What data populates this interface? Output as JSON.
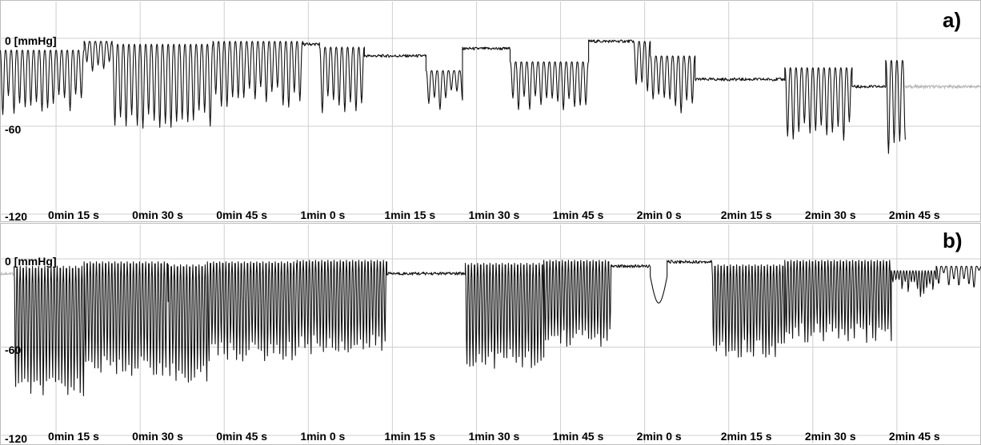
{
  "chart_data": [
    {
      "type": "line",
      "panel_label": "a)",
      "ylabel": "[mmHg]",
      "y_ticks": [
        {
          "value": 0,
          "label": "0 [mmHg]"
        },
        {
          "value": -60,
          "label": "-60"
        },
        {
          "value": -120,
          "label": "-120"
        }
      ],
      "ylim": [
        -120,
        5
      ],
      "xlim": [
        5,
        180
      ],
      "x_ticks": [
        {
          "t": 15,
          "label": "0min 15 s"
        },
        {
          "t": 30,
          "label": "0min 30 s"
        },
        {
          "t": 45,
          "label": "0min 45 s"
        },
        {
          "t": 60,
          "label": "1min 0 s"
        },
        {
          "t": 75,
          "label": "1min 15 s"
        },
        {
          "t": 90,
          "label": "1min 30 s"
        },
        {
          "t": 105,
          "label": "1min 45 s"
        },
        {
          "t": 120,
          "label": "2min 0 s"
        },
        {
          "t": 135,
          "label": "2min 15 s"
        },
        {
          "t": 150,
          "label": "2min 30 s"
        },
        {
          "t": 165,
          "label": "2min 45 s"
        }
      ],
      "grid": true,
      "series": [
        {
          "style": "dark",
          "segments": [
            {
              "t0": 5.0,
              "t1": 20.0,
              "mode": "osc",
              "upper": -8,
              "lower": -45,
              "period": 1.0
            },
            {
              "t0": 20.0,
              "t1": 25.0,
              "mode": "osc",
              "upper": -2,
              "lower": -22,
              "period": 1.0
            },
            {
              "t0": 25.0,
              "t1": 43.0,
              "mode": "osc",
              "upper": -4,
              "lower": -55,
              "period": 1.0
            },
            {
              "t0": 43.0,
              "t1": 59.0,
              "mode": "osc",
              "upper": -2,
              "lower": -40,
              "period": 1.0
            },
            {
              "t0": 59.0,
              "t1": 62.0,
              "mode": "flat",
              "level": -4
            },
            {
              "t0": 62.0,
              "t1": 70.0,
              "mode": "osc",
              "upper": -6,
              "lower": -45,
              "period": 1.0
            },
            {
              "t0": 70.0,
              "t1": 81.0,
              "mode": "flat",
              "level": -12
            },
            {
              "t0": 81.0,
              "t1": 87.5,
              "mode": "osc",
              "upper": -22,
              "lower": -42,
              "period": 1.0
            },
            {
              "t0": 87.5,
              "t1": 96.0,
              "mode": "flat",
              "level": -7
            },
            {
              "t0": 96.0,
              "t1": 110.0,
              "mode": "osc",
              "upper": -16,
              "lower": -46,
              "period": 1.0
            },
            {
              "t0": 110.0,
              "t1": 118.0,
              "mode": "flat",
              "level": -2
            },
            {
              "t0": 118.0,
              "t1": 121.0,
              "mode": "osc",
              "upper": -2,
              "lower": -35,
              "period": 1.0
            },
            {
              "t0": 121.0,
              "t1": 129.0,
              "mode": "osc",
              "upper": -12,
              "lower": -45,
              "period": 1.0
            },
            {
              "t0": 129.0,
              "t1": 145.0,
              "mode": "flat",
              "level": -28
            },
            {
              "t0": 145.0,
              "t1": 157.0,
              "mode": "osc",
              "upper": -20,
              "lower": -63,
              "period": 1.0
            },
            {
              "t0": 157.0,
              "t1": 163.0,
              "mode": "flat",
              "level": -33
            },
            {
              "t0": 163.0,
              "t1": 166.5,
              "mode": "osc",
              "upper": -15,
              "lower": -75,
              "period": 1.0
            }
          ]
        },
        {
          "style": "light",
          "segments": [
            {
              "t0": 166.5,
              "t1": 180.0,
              "mode": "flat",
              "level": -33
            }
          ]
        }
      ]
    },
    {
      "type": "line",
      "panel_label": "b)",
      "ylabel": "[mmHg]",
      "y_ticks": [
        {
          "value": 0,
          "label": "0 [mmHg]"
        },
        {
          "value": -60,
          "label": "-60"
        },
        {
          "value": -120,
          "label": "-120"
        }
      ],
      "ylim": [
        -120,
        5
      ],
      "xlim": [
        5,
        180
      ],
      "x_ticks": [
        {
          "t": 15,
          "label": "0min 15 s"
        },
        {
          "t": 30,
          "label": "0min 30 s"
        },
        {
          "t": 45,
          "label": "0min 45 s"
        },
        {
          "t": 60,
          "label": "1min 0 s"
        },
        {
          "t": 75,
          "label": "1min 15 s"
        },
        {
          "t": 90,
          "label": "1min 30 s"
        },
        {
          "t": 105,
          "label": "1min 45 s"
        },
        {
          "t": 120,
          "label": "2min 0 s"
        },
        {
          "t": 135,
          "label": "2min 15 s"
        },
        {
          "t": 150,
          "label": "2min 30 s"
        },
        {
          "t": 165,
          "label": "2min 45 s"
        }
      ],
      "grid": true,
      "series": [
        {
          "style": "light",
          "segments": [
            {
              "t0": 5.0,
              "t1": 7.5,
              "mode": "flat",
              "level": -10
            }
          ]
        },
        {
          "style": "dark",
          "segments": [
            {
              "t0": 7.5,
              "t1": 20.0,
              "mode": "osc",
              "upper": -5,
              "lower": -90,
              "period": 0.55
            },
            {
              "t0": 20.0,
              "t1": 35.0,
              "mode": "osc",
              "upper": -2,
              "lower": -75,
              "period": 0.55
            },
            {
              "t0": 35.0,
              "t1": 42.0,
              "mode": "osc",
              "upper": -4,
              "lower": -80,
              "period": 0.55
            },
            {
              "t0": 42.0,
              "t1": 58.0,
              "mode": "osc",
              "upper": -2,
              "lower": -65,
              "period": 0.55
            },
            {
              "t0": 58.0,
              "t1": 74.0,
              "mode": "osc",
              "upper": -1,
              "lower": -60,
              "period": 0.55
            },
            {
              "t0": 74.0,
              "t1": 88.0,
              "mode": "flat",
              "level": -10
            },
            {
              "t0": 88.0,
              "t1": 102.0,
              "mode": "osc",
              "upper": -3,
              "lower": -70,
              "period": 0.55
            },
            {
              "t0": 102.0,
              "t1": 114.0,
              "mode": "osc",
              "upper": -1,
              "lower": -55,
              "period": 0.55
            },
            {
              "t0": 114.0,
              "t1": 121.0,
              "mode": "flat",
              "level": -5
            },
            {
              "t0": 121.0,
              "t1": 124.0,
              "mode": "dip",
              "level": -12,
              "depth": -30
            },
            {
              "t0": 124.0,
              "t1": 132.0,
              "mode": "flat",
              "level": -2
            },
            {
              "t0": 132.0,
              "t1": 145.0,
              "mode": "osc",
              "upper": -4,
              "lower": -62,
              "period": 0.55
            },
            {
              "t0": 145.0,
              "t1": 164.0,
              "mode": "osc",
              "upper": -1,
              "lower": -52,
              "period": 0.55
            },
            {
              "t0": 164.0,
              "t1": 172.0,
              "mode": "osc",
              "upper": -8,
              "lower": -20,
              "period": 0.55
            },
            {
              "t0": 172.0,
              "t1": 180.0,
              "mode": "osc",
              "upper": -5,
              "lower": -14,
              "period": 0.9
            }
          ]
        }
      ]
    }
  ],
  "panels": [
    {
      "letter": "a)",
      "y0": "0 [mmHg]",
      "y60": "-60",
      "y120": "-120",
      "xlabels": [
        "0min 15 s",
        "0min 30 s",
        "0min 45 s",
        "1min 0 s",
        "1min 15 s",
        "1min 30 s",
        "1min 45 s",
        "2min 0 s",
        "2min 15 s",
        "2min 30 s",
        "2min 45 s"
      ]
    },
    {
      "letter": "b)",
      "y0": "0 [mmHg]",
      "y60": "-60",
      "y120": "-120",
      "xlabels": [
        "0min 15 s",
        "0min 30 s",
        "0min 45 s",
        "1min 0 s",
        "1min 15 s",
        "1min 30 s",
        "1min 45 s",
        "2min 0 s",
        "2min 15 s",
        "2min 30 s",
        "2min 45 s"
      ]
    }
  ]
}
